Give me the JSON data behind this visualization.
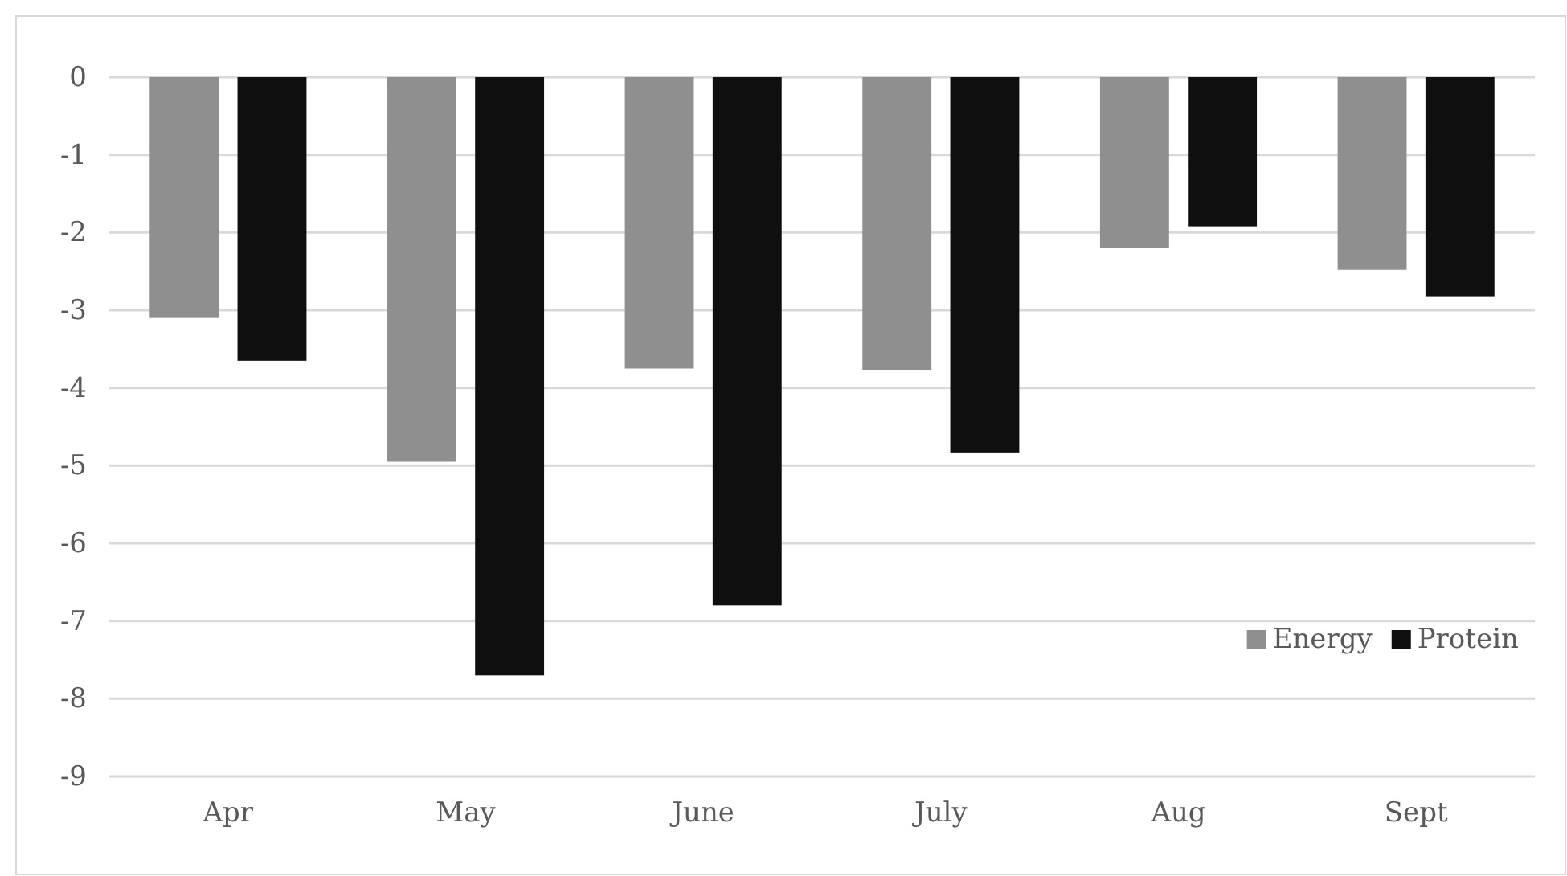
{
  "chart_data": {
    "type": "bar",
    "categories": [
      "Apr",
      "May",
      "June",
      "July",
      "Aug",
      "Sept"
    ],
    "series": [
      {
        "name": "Energy",
        "color": "#8f8f8f",
        "values": [
          -3.1,
          -4.95,
          -3.75,
          -3.77,
          -2.2,
          -2.48
        ]
      },
      {
        "name": "Protein",
        "color": "#0f0f0f",
        "values": [
          -3.65,
          -7.7,
          -6.8,
          -4.84,
          -1.92,
          -2.82
        ]
      }
    ],
    "ylim": [
      -9,
      0
    ],
    "yticks": [
      -9,
      -8,
      -7,
      -6,
      -5,
      -4,
      -3,
      -2,
      -1,
      0
    ],
    "grid": "y",
    "legend": "bottom right"
  }
}
